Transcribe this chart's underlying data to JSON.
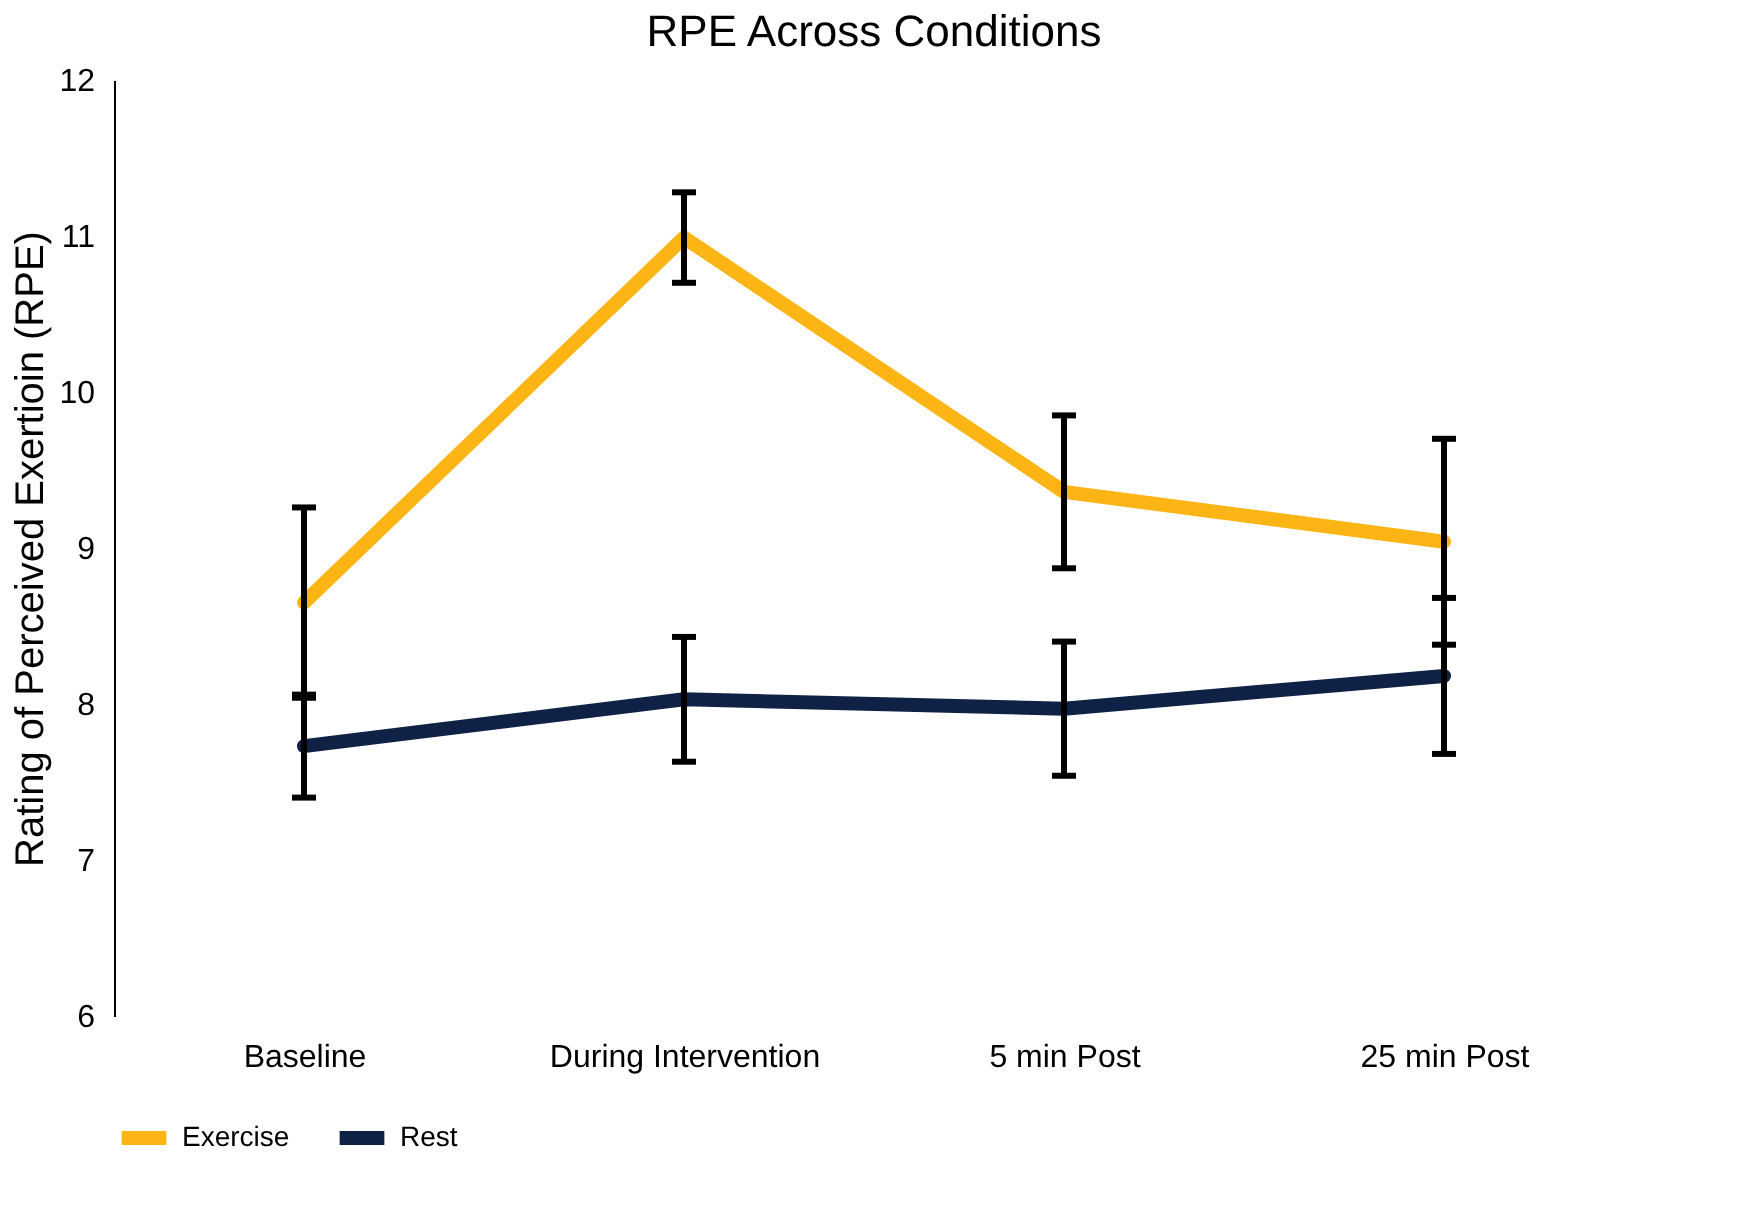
{
  "chart_data": {
    "type": "line",
    "title": "RPE Across Conditions",
    "ylabel": "Rating of Perceived Exertioin (RPE)",
    "categories": [
      "Baseline",
      "During Intervention",
      "5 min Post",
      "25 min Post"
    ],
    "series": [
      {
        "name": "Exercise",
        "color": "#fdb515",
        "values": [
          8.65,
          10.99,
          9.36,
          9.04
        ],
        "errors": [
          0.61,
          0.29,
          0.49,
          0.66
        ]
      },
      {
        "name": "Rest",
        "color": "#0f2246",
        "values": [
          7.73,
          8.03,
          7.97,
          8.18
        ],
        "errors": [
          0.33,
          0.4,
          0.43,
          0.5
        ]
      }
    ],
    "ylim": [
      6,
      12
    ],
    "yticks": [
      6,
      7,
      8,
      9,
      10,
      11,
      12
    ],
    "grid": false,
    "legend": "bottom",
    "marker": "none",
    "line_style": "solid"
  }
}
